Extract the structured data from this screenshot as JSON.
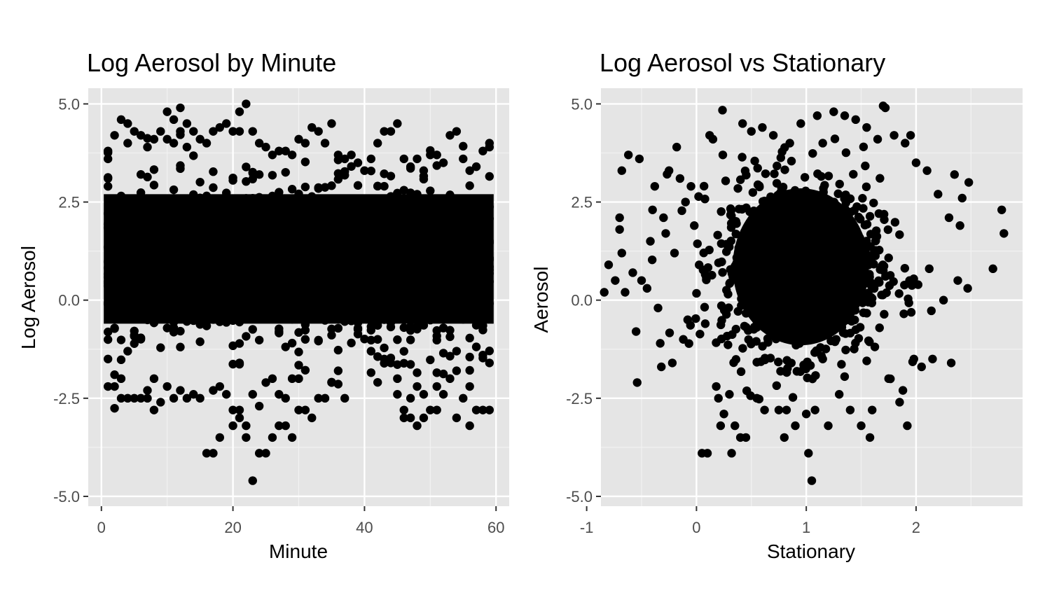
{
  "colors": {
    "panel_background": "#e5e5e5",
    "grid_major": "#ffffff",
    "grid_minor": "#f2f2f2",
    "points": "#000000",
    "tick_text": "#4d4d4d",
    "tick_marks": "#333333"
  },
  "chart_data": [
    {
      "type": "scatter",
      "title": "Log Aerosol by Minute",
      "xlabel": "Minute",
      "ylabel": "Log Aerosol",
      "xlim": [
        -2,
        62
      ],
      "ylim": [
        -5.25,
        5.4
      ],
      "x_ticks": [
        0,
        20,
        40,
        60
      ],
      "x_tick_labels": [
        "0",
        "20",
        "40",
        "60"
      ],
      "y_ticks": [
        -5,
        -2.5,
        0,
        2.5,
        5
      ],
      "y_tick_labels": [
        "-5.0",
        "-2.5",
        "0.0",
        "2.5",
        "5.0"
      ],
      "grid": true,
      "legend": "none",
      "dense_band": {
        "x_range": [
          1,
          59
        ],
        "y_range": [
          -0.6,
          2.7
        ],
        "note": "thousands of overlapping points forming a solid black band"
      },
      "points": [
        [
          1,
          3.8
        ],
        [
          1,
          3.6
        ],
        [
          1,
          3.1
        ],
        [
          1,
          2.9
        ],
        [
          1,
          -1.5
        ],
        [
          1,
          -2.2
        ],
        [
          2,
          4.2
        ],
        [
          2,
          -1.9
        ],
        [
          2,
          -2.2
        ],
        [
          3,
          4.6
        ],
        [
          3,
          -2.5
        ],
        [
          3,
          -2.0
        ],
        [
          4,
          4.0
        ],
        [
          4,
          4.5
        ],
        [
          4,
          -2.5
        ],
        [
          4,
          -1.3
        ],
        [
          5,
          4.3
        ],
        [
          5,
          -2.5
        ],
        [
          6,
          4.2
        ],
        [
          6,
          -2.5
        ],
        [
          7,
          3.9
        ],
        [
          7,
          -2.5
        ],
        [
          7,
          -2.3
        ],
        [
          8,
          4.1
        ],
        [
          8,
          -2.8
        ],
        [
          8,
          -2.0
        ],
        [
          9,
          4.3
        ],
        [
          9,
          -2.6
        ],
        [
          10,
          4.8
        ],
        [
          10,
          4.1
        ],
        [
          10,
          -2.2
        ],
        [
          11,
          4.6
        ],
        [
          11,
          4.0
        ],
        [
          11,
          -2.5
        ],
        [
          12,
          4.9
        ],
        [
          12,
          4.3
        ],
        [
          12,
          -2.3
        ],
        [
          13,
          4.5
        ],
        [
          13,
          3.9
        ],
        [
          13,
          -2.5
        ],
        [
          14,
          4.3
        ],
        [
          14,
          -2.4
        ],
        [
          15,
          4.1
        ],
        [
          15,
          -2.5
        ],
        [
          16,
          4.0
        ],
        [
          16,
          -3.9
        ],
        [
          17,
          4.3
        ],
        [
          17,
          -3.9
        ],
        [
          17,
          -2.3
        ],
        [
          18,
          4.4
        ],
        [
          18,
          -3.5
        ],
        [
          18,
          -2.2
        ],
        [
          19,
          4.5
        ],
        [
          19,
          -2.4
        ],
        [
          20,
          4.3
        ],
        [
          20,
          -3.2
        ],
        [
          20,
          -2.8
        ],
        [
          21,
          4.8
        ],
        [
          21,
          4.3
        ],
        [
          21,
          -3.0
        ],
        [
          21,
          -2.8
        ],
        [
          21,
          -1.6
        ],
        [
          22,
          5.0
        ],
        [
          22,
          -3.5
        ],
        [
          22,
          -3.2
        ],
        [
          23,
          4.3
        ],
        [
          23,
          -4.6
        ],
        [
          23,
          -2.4
        ],
        [
          24,
          4.0
        ],
        [
          24,
          -3.9
        ],
        [
          24,
          -2.7
        ],
        [
          25,
          3.9
        ],
        [
          25,
          -3.9
        ],
        [
          25,
          -2.1
        ],
        [
          26,
          3.7
        ],
        [
          26,
          -3.5
        ],
        [
          26,
          -2.0
        ],
        [
          27,
          3.8
        ],
        [
          27,
          -3.2
        ],
        [
          27,
          -2.4
        ],
        [
          28,
          3.8
        ],
        [
          28,
          -3.2
        ],
        [
          28,
          -2.5
        ],
        [
          29,
          3.7
        ],
        [
          29,
          -3.5
        ],
        [
          29,
          -2.0
        ],
        [
          30,
          4.1
        ],
        [
          30,
          -2.8
        ],
        [
          30,
          -2.0
        ],
        [
          31,
          4.0
        ],
        [
          31,
          -2.8
        ],
        [
          32,
          4.4
        ],
        [
          32,
          -3.0
        ],
        [
          33,
          4.3
        ],
        [
          33,
          -2.5
        ],
        [
          34,
          4.0
        ],
        [
          34,
          -2.5
        ],
        [
          35,
          4.5
        ],
        [
          35,
          -2.1
        ],
        [
          36,
          3.7
        ],
        [
          36,
          -1.8
        ],
        [
          37,
          3.6
        ],
        [
          37,
          -2.5
        ],
        [
          38,
          3.7
        ],
        [
          39,
          3.5
        ],
        [
          40,
          3.3
        ],
        [
          41,
          3.6
        ],
        [
          41,
          -1.3
        ],
        [
          42,
          4.0
        ],
        [
          42,
          -1.0
        ],
        [
          43,
          4.3
        ],
        [
          43,
          -1.5
        ],
        [
          44,
          4.3
        ],
        [
          44,
          -1.6
        ],
        [
          45,
          4.5
        ],
        [
          45,
          -2.4
        ],
        [
          45,
          -2.0
        ],
        [
          46,
          3.6
        ],
        [
          46,
          -3.0
        ],
        [
          46,
          -2.8
        ],
        [
          47,
          3.4
        ],
        [
          47,
          -3.0
        ],
        [
          47,
          -2.5
        ],
        [
          48,
          3.6
        ],
        [
          48,
          -3.2
        ],
        [
          48,
          -2.2
        ],
        [
          49,
          3.3
        ],
        [
          49,
          -3.0
        ],
        [
          49,
          -2.4
        ],
        [
          50,
          3.7
        ],
        [
          50,
          -2.8
        ],
        [
          51,
          3.7
        ],
        [
          51,
          -2.8
        ],
        [
          51,
          -2.2
        ],
        [
          52,
          3.5
        ],
        [
          52,
          -2.4
        ],
        [
          53,
          4.2
        ],
        [
          53,
          -2.0
        ],
        [
          54,
          4.3
        ],
        [
          54,
          -3.0
        ],
        [
          54,
          -1.8
        ],
        [
          55,
          3.6
        ],
        [
          55,
          -2.5
        ],
        [
          56,
          3.3
        ],
        [
          56,
          -3.2
        ],
        [
          56,
          -2.2
        ],
        [
          57,
          3.4
        ],
        [
          57,
          -2.8
        ],
        [
          58,
          3.8
        ],
        [
          58,
          -2.8
        ],
        [
          58,
          -1.4
        ],
        [
          59,
          4.0
        ],
        [
          59,
          3.9
        ],
        [
          59,
          -2.8
        ],
        [
          59,
          -1.6
        ]
      ]
    },
    {
      "type": "scatter",
      "title": "Log Aerosol vs Stationary",
      "xlabel": "Stationary",
      "ylabel": "Aerosol",
      "xlim": [
        -0.87,
        2.97
      ],
      "ylim": [
        -5.25,
        5.4
      ],
      "x_ticks": [
        -1,
        0,
        1,
        2
      ],
      "x_tick_labels": [
        "-1",
        "0",
        "1",
        "2"
      ],
      "y_ticks": [
        -5,
        -2.5,
        0,
        2.5,
        5
      ],
      "y_tick_labels": [
        "-5.0",
        "-2.5",
        "0.0",
        "2.5",
        "5.0"
      ],
      "grid": true,
      "legend": "none",
      "dense_cluster": {
        "center": [
          0.95,
          0.85
        ],
        "x_radius": 0.62,
        "y_radius": 2.0,
        "note": "thousands of overlapping points forming a solid black blob"
      },
      "points": [
        [
          -0.84,
          0.2
        ],
        [
          -0.8,
          0.9
        ],
        [
          -0.74,
          0.5
        ],
        [
          -0.7,
          2.1
        ],
        [
          -0.7,
          1.8
        ],
        [
          -0.68,
          1.2
        ],
        [
          -0.68,
          3.3
        ],
        [
          -0.65,
          0.2
        ],
        [
          -0.62,
          3.7
        ],
        [
          -0.58,
          0.7
        ],
        [
          -0.55,
          -0.8
        ],
        [
          -0.54,
          -2.1
        ],
        [
          -0.52,
          3.6
        ],
        [
          -0.5,
          0.5
        ],
        [
          -0.45,
          0.3
        ],
        [
          -0.42,
          1.5
        ],
        [
          -0.4,
          2.3
        ],
        [
          -0.38,
          2.9
        ],
        [
          -0.35,
          -0.2
        ],
        [
          -0.33,
          -1.1
        ],
        [
          -0.32,
          -1.7
        ],
        [
          -0.3,
          2.1
        ],
        [
          -0.28,
          1.7
        ],
        [
          -0.25,
          3.3
        ],
        [
          -0.22,
          -1.6
        ],
        [
          -0.2,
          1.2
        ],
        [
          -0.18,
          3.9
        ],
        [
          -0.15,
          3.1
        ],
        [
          -0.12,
          -1.0
        ],
        [
          -0.1,
          2.5
        ],
        [
          -0.08,
          -0.5
        ],
        [
          -0.05,
          2.9
        ],
        [
          -0.02,
          1.9
        ],
        [
          0.05,
          -3.9
        ],
        [
          0.08,
          -0.6
        ],
        [
          0.1,
          -3.9
        ],
        [
          0.12,
          4.2
        ],
        [
          0.15,
          4.1
        ],
        [
          0.18,
          -2.2
        ],
        [
          0.2,
          -2.5
        ],
        [
          0.22,
          -3.2
        ],
        [
          0.24,
          3.7
        ],
        [
          0.25,
          -2.9
        ],
        [
          0.3,
          -2.4
        ],
        [
          0.32,
          -3.9
        ],
        [
          0.35,
          -3.2
        ],
        [
          0.4,
          -3.5
        ],
        [
          0.42,
          4.5
        ],
        [
          0.45,
          -3.5
        ],
        [
          0.5,
          4.3
        ],
        [
          0.55,
          -2.5
        ],
        [
          0.6,
          4.4
        ],
        [
          0.62,
          -2.8
        ],
        [
          0.7,
          4.2
        ],
        [
          0.75,
          -2.8
        ],
        [
          0.8,
          -3.5
        ],
        [
          0.82,
          -2.8
        ],
        [
          0.85,
          4.0
        ],
        [
          0.9,
          -3.2
        ],
        [
          0.95,
          4.5
        ],
        [
          1.0,
          -2.9
        ],
        [
          1.02,
          -3.9
        ],
        [
          1.05,
          -4.6
        ],
        [
          1.08,
          -2.8
        ],
        [
          1.1,
          4.7
        ],
        [
          1.15,
          4.0
        ],
        [
          1.2,
          -3.2
        ],
        [
          1.25,
          4.8
        ],
        [
          1.3,
          -2.4
        ],
        [
          1.35,
          4.7
        ],
        [
          1.4,
          -2.8
        ],
        [
          1.45,
          4.6
        ],
        [
          1.5,
          -3.2
        ],
        [
          1.55,
          4.4
        ],
        [
          1.58,
          -3.5
        ],
        [
          1.6,
          -2.8
        ],
        [
          1.65,
          4.1
        ],
        [
          1.7,
          4.95
        ],
        [
          1.72,
          4.9
        ],
        [
          1.75,
          -2.0
        ],
        [
          1.8,
          4.2
        ],
        [
          1.85,
          -2.6
        ],
        [
          1.88,
          -2.3
        ],
        [
          1.9,
          4.0
        ],
        [
          1.92,
          -3.2
        ],
        [
          1.95,
          4.2
        ],
        [
          1.98,
          -1.5
        ],
        [
          2.0,
          3.5
        ],
        [
          2.05,
          -1.7
        ],
        [
          2.1,
          3.3
        ],
        [
          2.12,
          0.8
        ],
        [
          2.15,
          -1.5
        ],
        [
          2.2,
          2.7
        ],
        [
          2.25,
          0.0
        ],
        [
          2.3,
          2.1
        ],
        [
          2.32,
          -1.6
        ],
        [
          2.35,
          3.2
        ],
        [
          2.38,
          0.5
        ],
        [
          2.4,
          1.9
        ],
        [
          2.42,
          2.6
        ],
        [
          2.48,
          3.0
        ],
        [
          2.47,
          0.3
        ],
        [
          2.7,
          0.8
        ],
        [
          2.78,
          2.3
        ],
        [
          2.8,
          1.7
        ]
      ]
    }
  ]
}
